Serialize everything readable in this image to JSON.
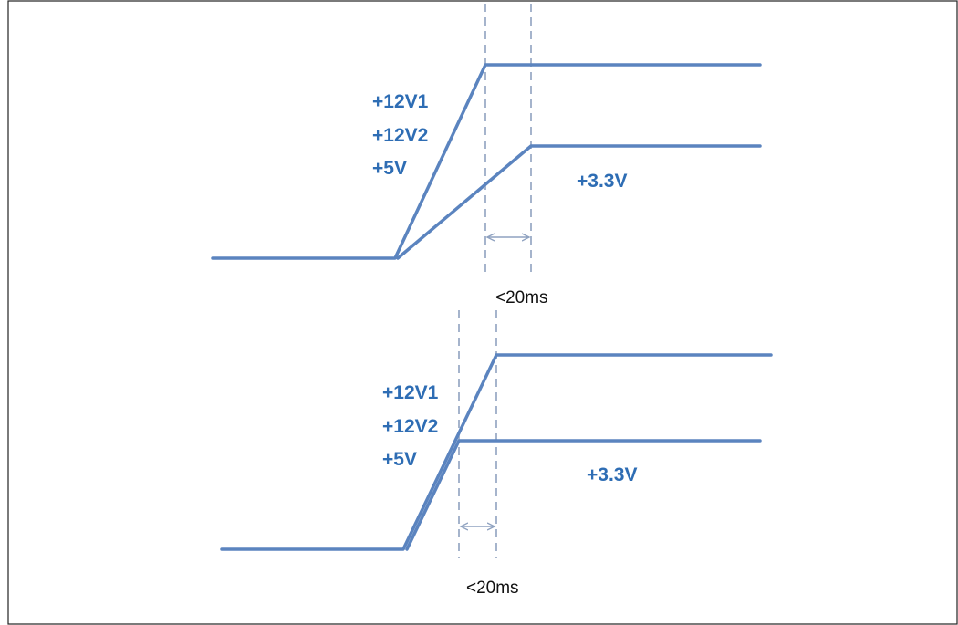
{
  "colors": {
    "trace": "#5b84bf",
    "label": "#2e6db4",
    "guide": "#8fa2c0",
    "frame": "#222222"
  },
  "top_diagram": {
    "rail_labels": [
      "+12V1",
      "+12V2",
      "+5V"
    ],
    "rail_3v3_label": "+3.3V",
    "timing_label": "<20ms"
  },
  "bottom_diagram": {
    "rail_labels": [
      "+12V1",
      "+12V2",
      "+5V"
    ],
    "rail_3v3_label": "+3.3V",
    "timing_label": "<20ms"
  }
}
